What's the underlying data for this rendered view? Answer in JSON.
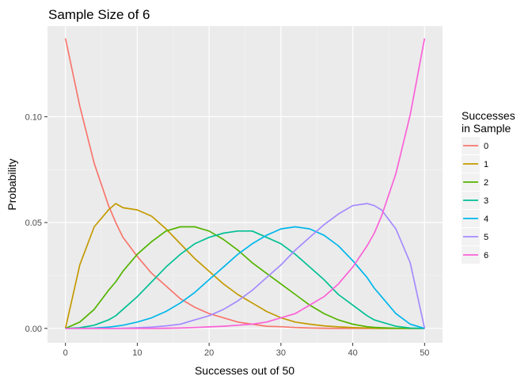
{
  "chart_data": {
    "type": "line",
    "title": "Sample Size of 6",
    "xlabel": "Successes out of  50",
    "ylabel": "Probability",
    "xlim": [
      -2.5,
      52.5
    ],
    "ylim": [
      -0.0068,
      0.1428
    ],
    "xticks": [
      0,
      10,
      20,
      30,
      40,
      50
    ],
    "xtick_labels": [
      "0",
      "10",
      "20",
      "30",
      "40",
      "50"
    ],
    "yticks": [
      0.0,
      0.05,
      0.1
    ],
    "ytick_labels": [
      "0.00",
      "0.05",
      "0.10"
    ],
    "grid": true,
    "legend": {
      "position": "right",
      "title_lines": [
        "Successes",
        "in Sample"
      ]
    },
    "x": [
      0,
      2,
      4,
      6,
      7,
      8,
      10,
      12,
      14,
      16,
      18,
      20,
      22,
      24,
      26,
      28,
      30,
      32,
      34,
      36,
      38,
      40,
      42,
      43,
      44,
      46,
      48,
      50
    ],
    "series": [
      {
        "name": "0",
        "color": "#F8766D",
        "values": [
          0.137,
          0.105,
          0.078,
          0.058,
          0.05,
          0.043,
          0.034,
          0.026,
          0.02,
          0.014,
          0.01,
          0.007,
          0.005,
          0.003,
          0.002,
          0.001,
          0.0008,
          0.0004,
          0.0002,
          0.0001,
          0.0,
          0.0,
          0.0,
          0.0,
          0.0,
          0.0,
          0.0,
          0.0
        ]
      },
      {
        "name": "1",
        "color": "#C49A00",
        "values": [
          0.0,
          0.03,
          0.048,
          0.056,
          0.059,
          0.057,
          0.056,
          0.053,
          0.047,
          0.04,
          0.033,
          0.027,
          0.021,
          0.016,
          0.012,
          0.008,
          0.005,
          0.003,
          0.002,
          0.0012,
          0.0007,
          0.0004,
          0.0002,
          0.0001,
          0.0,
          0.0,
          0.0,
          0.0
        ]
      },
      {
        "name": "2",
        "color": "#53B400",
        "values": [
          0.0,
          0.003,
          0.009,
          0.018,
          0.022,
          0.027,
          0.035,
          0.041,
          0.046,
          0.048,
          0.048,
          0.046,
          0.042,
          0.037,
          0.031,
          0.026,
          0.021,
          0.016,
          0.011,
          0.007,
          0.004,
          0.002,
          0.0008,
          0.0005,
          0.0003,
          0.0001,
          0.0,
          0.0
        ]
      },
      {
        "name": "3",
        "color": "#00C094",
        "values": [
          0.0,
          0.0003,
          0.0015,
          0.004,
          0.006,
          0.009,
          0.015,
          0.022,
          0.029,
          0.035,
          0.04,
          0.043,
          0.045,
          0.046,
          0.046,
          0.043,
          0.04,
          0.035,
          0.029,
          0.023,
          0.016,
          0.011,
          0.006,
          0.004,
          0.003,
          0.001,
          0.0002,
          0.0
        ]
      },
      {
        "name": "4",
        "color": "#00B6EB",
        "values": [
          0.0,
          0.0,
          0.0002,
          0.0006,
          0.001,
          0.0015,
          0.003,
          0.005,
          0.008,
          0.012,
          0.017,
          0.023,
          0.029,
          0.035,
          0.04,
          0.044,
          0.047,
          0.048,
          0.047,
          0.044,
          0.039,
          0.032,
          0.024,
          0.019,
          0.015,
          0.007,
          0.002,
          0.0
        ]
      },
      {
        "name": "5",
        "color": "#A58AFF",
        "values": [
          0.0,
          0.0,
          0.0,
          0.0,
          0.0,
          0.0001,
          0.0003,
          0.0006,
          0.0012,
          0.002,
          0.004,
          0.006,
          0.009,
          0.013,
          0.018,
          0.024,
          0.03,
          0.037,
          0.043,
          0.049,
          0.054,
          0.058,
          0.059,
          0.058,
          0.056,
          0.047,
          0.031,
          0.0
        ]
      },
      {
        "name": "6",
        "color": "#FB61D7",
        "values": [
          0.0,
          0.0,
          0.0,
          0.0,
          0.0,
          0.0,
          0.0,
          0.0,
          0.0001,
          0.0002,
          0.0004,
          0.0007,
          0.001,
          0.0015,
          0.002,
          0.003,
          0.005,
          0.007,
          0.011,
          0.015,
          0.021,
          0.029,
          0.039,
          0.045,
          0.053,
          0.073,
          0.101,
          0.137
        ]
      }
    ]
  }
}
